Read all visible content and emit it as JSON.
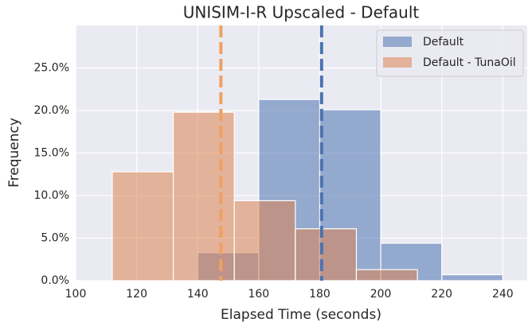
{
  "chart_data": {
    "type": "histogram",
    "title": "UNISIM-I-R Upscaled - Default",
    "xlabel": "Elapsed Time (seconds)",
    "ylabel": "Frequency",
    "series": [
      {
        "name": "Default",
        "color": "#4c72b0",
        "bins": [
          140,
          160,
          180,
          200,
          220,
          240
        ],
        "values": [
          3.3,
          21.3,
          20.1,
          4.4,
          0.7
        ]
      },
      {
        "name": "Default - TunaOil",
        "color": "#dd8452",
        "bins": [
          112,
          132,
          152,
          172,
          192,
          212
        ],
        "values": [
          12.8,
          19.8,
          9.4,
          6.1,
          1.3
        ]
      }
    ],
    "vlines": [
      {
        "x": 180.6,
        "color": "#4c72b0"
      },
      {
        "x": 147.6,
        "color": "#f0a060"
      }
    ],
    "xlim": [
      100,
      248
    ],
    "xticks": [
      100,
      120,
      140,
      160,
      180,
      200,
      220,
      240
    ],
    "ylim": [
      0,
      30
    ],
    "yticks": [
      {
        "value": 0,
        "label": "0.0%"
      },
      {
        "value": 5,
        "label": "5.0%"
      },
      {
        "value": 10,
        "label": "10.0%"
      },
      {
        "value": 15,
        "label": "15.0%"
      },
      {
        "value": 20,
        "label": "20.0%"
      },
      {
        "value": 25,
        "label": "25.0%"
      }
    ],
    "grid": true,
    "legend": "upper right"
  }
}
